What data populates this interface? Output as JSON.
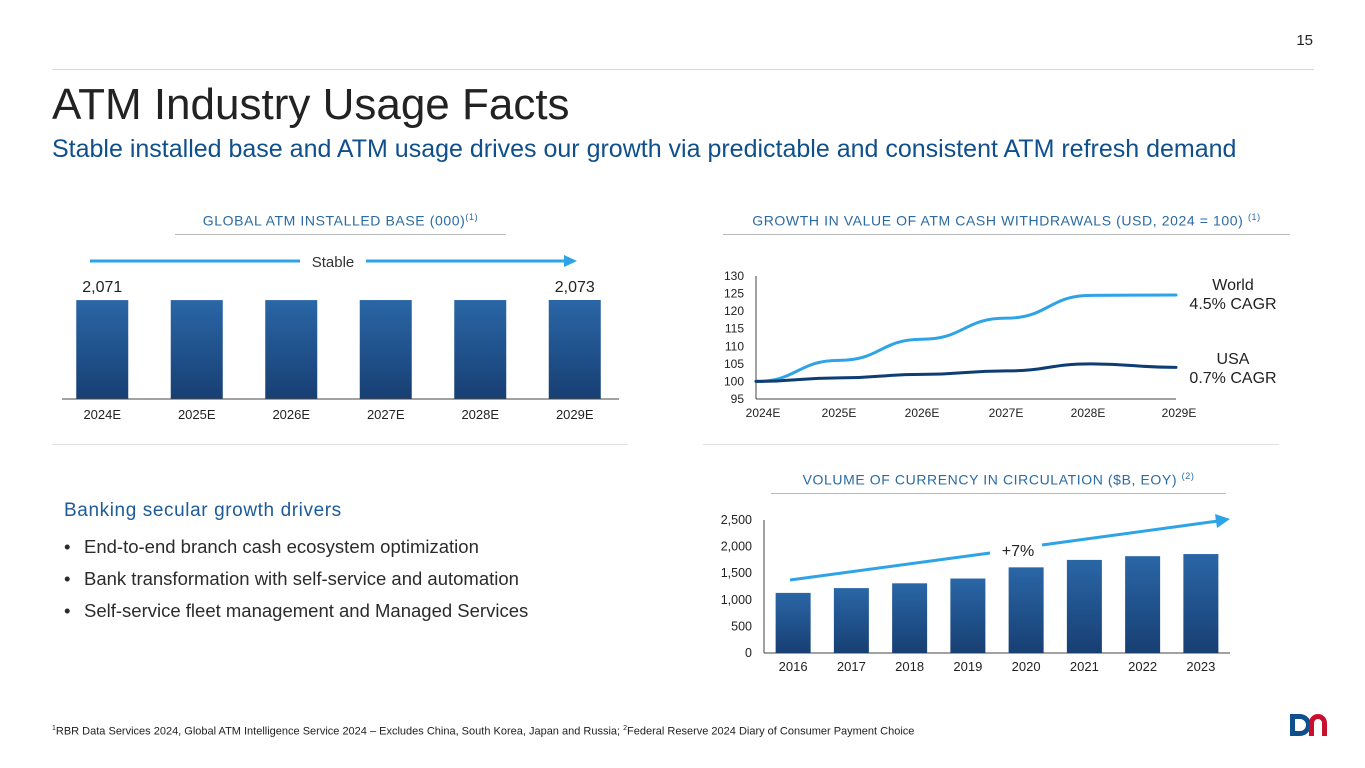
{
  "page": {
    "number": "15",
    "title": "ATM Industry Usage Facts",
    "subtitle": "Stable installed base and ATM usage drives our growth via predictable and consistent ATM refresh demand"
  },
  "panels": {
    "installed_base": {
      "title": "GLOBAL ATM INSTALLED BASE (000)",
      "footnote_ref": "(1)",
      "trend_label": "Stable"
    },
    "withdrawals": {
      "title": "GROWTH IN VALUE OF ATM CASH WITHDRAWALS (USD, 2024 = 100)",
      "footnote_ref": "(1)"
    },
    "currency": {
      "title": "VOLUME OF CURRENCY IN CIRCULATION ($B, EOY)",
      "footnote_ref": "(2)",
      "trend_label": "+7%"
    }
  },
  "drivers": {
    "heading": "Banking secular growth drivers",
    "bullet": "•",
    "items": [
      "End-to-end branch cash ecosystem optimization",
      "Bank transformation with self-service and automation",
      "Self-service fleet management and Managed Services"
    ]
  },
  "footnote": {
    "sup1": "1",
    "text1": "RBR Data Services 2024, Global ATM Intelligence Service 2024 – Excludes China, South Korea, Japan and Russia; ",
    "sup2": "2",
    "text2": "Federal Reserve 2024 Diary of Consumer Payment Choice"
  },
  "colors": {
    "navy": "#0e4f8c",
    "bar_dark": "#173f73",
    "bar_light": "#2a66a6",
    "light_blue": "#2ea3e6",
    "dark_line": "#0d3d73",
    "logo_red": "#c8102e"
  },
  "chart_data": [
    {
      "type": "bar",
      "title": "GLOBAL ATM INSTALLED BASE (000)",
      "categories": [
        "2024E",
        "2025E",
        "2026E",
        "2027E",
        "2028E",
        "2029E"
      ],
      "values": [
        2071,
        2071,
        2071,
        2072,
        2072,
        2073
      ],
      "data_labels": {
        "2024E": "2,071",
        "2029E": "2,073"
      },
      "annotation": "Stable"
    },
    {
      "type": "line",
      "title": "GROWTH IN VALUE OF ATM CASH WITHDRAWALS (USD, 2024 = 100)",
      "x": [
        "2024E",
        "2025E",
        "2026E",
        "2027E",
        "2028E",
        "2029E"
      ],
      "ylim": [
        95,
        130
      ],
      "yticks": [
        95,
        100,
        105,
        110,
        115,
        120,
        125,
        130
      ],
      "series": [
        {
          "name": "World",
          "label": "4.5% CAGR",
          "values": [
            100,
            106,
            112,
            118,
            124.5,
            124.6
          ]
        },
        {
          "name": "USA",
          "label": "0.7% CAGR",
          "values": [
            100,
            101,
            102,
            103,
            105,
            104
          ]
        }
      ]
    },
    {
      "type": "bar",
      "title": "VOLUME OF CURRENCY IN CIRCULATION ($B, EOY)",
      "categories": [
        "2016",
        "2017",
        "2018",
        "2019",
        "2020",
        "2021",
        "2022",
        "2023"
      ],
      "values": [
        1130,
        1220,
        1310,
        1400,
        1610,
        1750,
        1820,
        1860
      ],
      "ylim": [
        0,
        2500
      ],
      "yticks": [
        "0",
        "500",
        "1,000",
        "1,500",
        "2,000",
        "2,500"
      ],
      "annotation": "+7%"
    }
  ]
}
